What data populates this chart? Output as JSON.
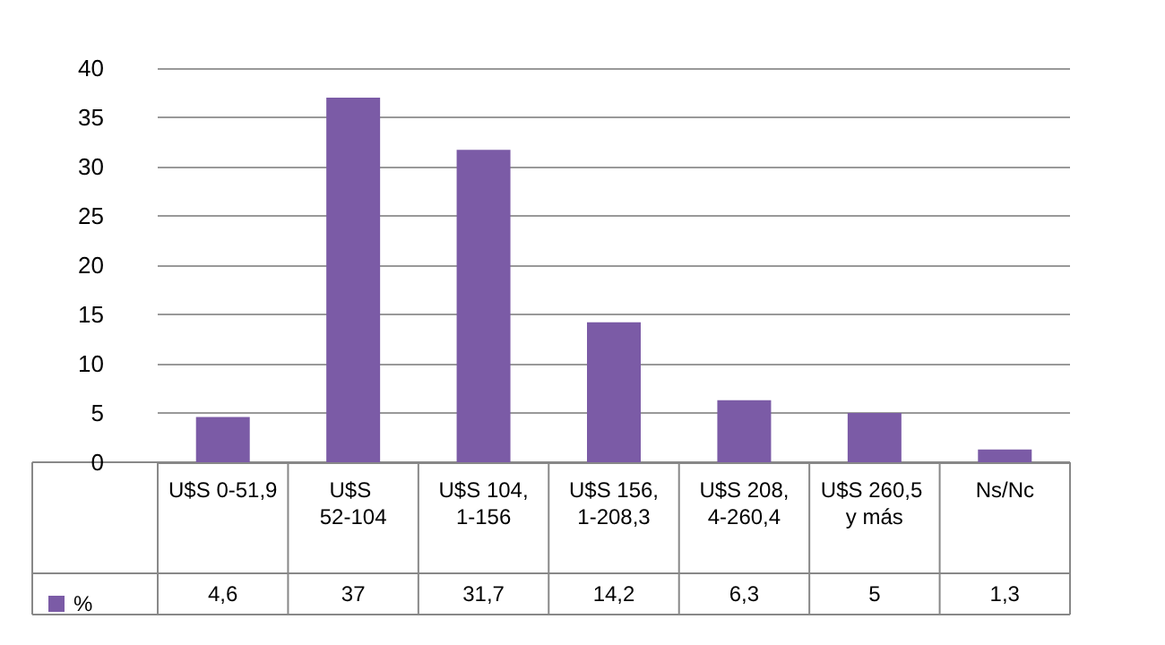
{
  "chart_data": {
    "type": "bar",
    "categories": [
      "U$S 0-51,9",
      "U$S 52-104",
      "U$S 104,1-156",
      "U$S 156,1-208,3",
      "U$S 208,4-260,4",
      "U$S 260,5 y más",
      "Ns/Nc"
    ],
    "series": [
      {
        "name": "%",
        "color": "#7b5ba6",
        "values": [
          4.6,
          37,
          31.7,
          14.2,
          6.3,
          5,
          1.3
        ],
        "value_labels": [
          "4,6",
          "37",
          "31,7",
          "14,2",
          "6,3",
          "5",
          "1,3"
        ]
      }
    ],
    "ylim": [
      0,
      40
    ],
    "yticks": [
      0,
      5,
      10,
      15,
      20,
      25,
      30,
      35,
      40
    ],
    "grid": "y",
    "legend": "bottom left"
  }
}
